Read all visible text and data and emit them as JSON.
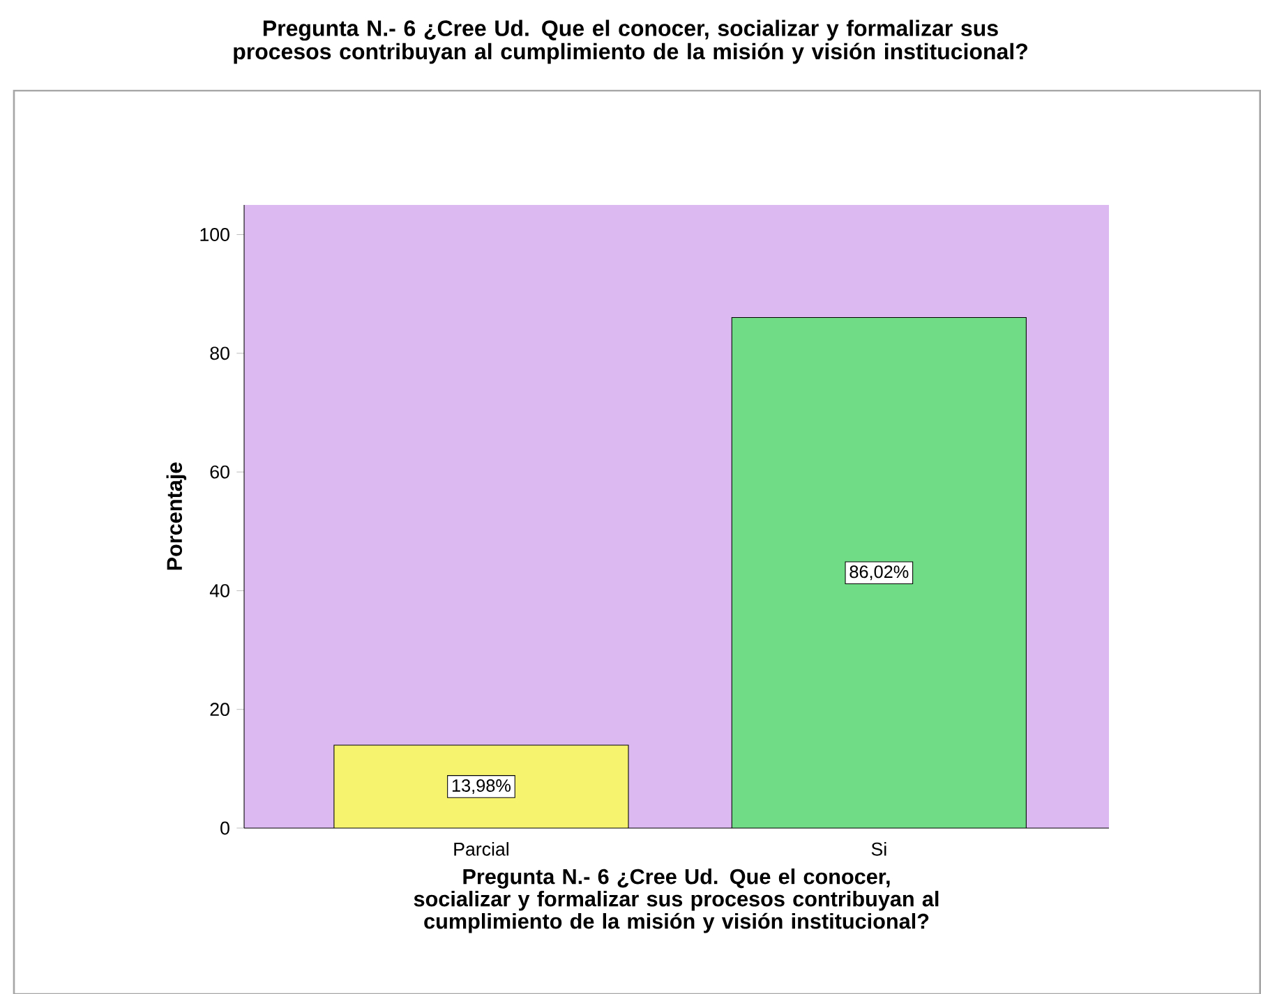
{
  "chart_data": {
    "type": "bar",
    "title": "Pregunta N.- 6 ¿Cree Ud. Que el conocer, socializar y formalizar sus procesos contribuyan al cumplimiento de la misión y visión institucional?",
    "xlabel": "Pregunta N.- 6 ¿Cree Ud. Que el conocer, socializar y formalizar sus procesos contribuyan al cumplimiento de la misión y visión institucional?",
    "ylabel": "Porcentaje",
    "categories": [
      "Parcial",
      "Si"
    ],
    "values": [
      13.98,
      86.02
    ],
    "colors": [
      "#f6f36e",
      "#70dc86"
    ],
    "value_labels": [
      "13,98%",
      "86,02%"
    ],
    "ylim": [
      0,
      105
    ],
    "yticks": [
      0,
      20,
      40,
      60,
      80,
      100
    ]
  }
}
